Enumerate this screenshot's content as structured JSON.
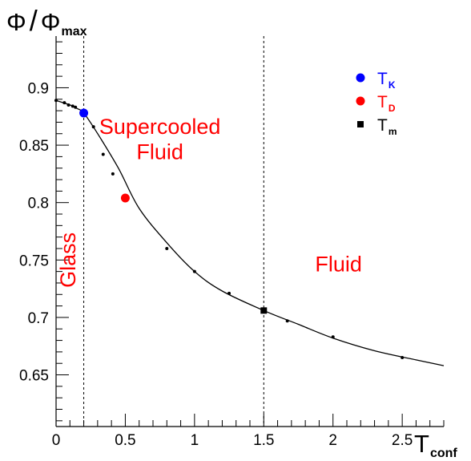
{
  "chart_data": {
    "type": "line",
    "xlabel": "T",
    "xlabel_sub": "conf",
    "ylabel_num": "Φ",
    "ylabel_slash": "/",
    "ylabel_den": "Φ",
    "ylabel_den_sub": "max",
    "xlim": [
      0,
      2.8
    ],
    "ylim": [
      0.605,
      0.945
    ],
    "x_ticks": [
      0,
      0.5,
      1,
      1.5,
      2,
      2.5
    ],
    "x_tick_labels": [
      "0",
      "0.5",
      "1",
      "1.5",
      "2",
      "2.5"
    ],
    "y_ticks": [
      0.65,
      0.7,
      0.75,
      0.8,
      0.85,
      0.9
    ],
    "y_tick_labels": [
      "0.65",
      "0.7",
      "0.75",
      "0.8",
      "0.85",
      "0.9"
    ],
    "grid": false,
    "vertical_lines": [
      0.2,
      1.5
    ],
    "curve": {
      "x": [
        0.0,
        0.1,
        0.15,
        0.2,
        0.3,
        0.45,
        0.6,
        0.8,
        1.0,
        1.2,
        1.5,
        1.75,
        2.0,
        2.3,
        2.6,
        2.8
      ],
      "y": [
        0.889,
        0.885,
        0.882,
        0.878,
        0.86,
        0.83,
        0.795,
        0.765,
        0.74,
        0.723,
        0.706,
        0.694,
        0.682,
        0.671,
        0.663,
        0.658
      ]
    },
    "points": {
      "x": [
        0.0,
        0.06,
        0.09,
        0.12,
        0.14,
        0.27,
        0.34,
        0.41,
        0.8,
        1.0,
        1.25,
        1.67,
        2.0,
        2.5
      ],
      "y": [
        0.889,
        0.887,
        0.885,
        0.884,
        0.883,
        0.866,
        0.842,
        0.825,
        0.76,
        0.74,
        0.721,
        0.697,
        0.683,
        0.665
      ]
    },
    "markers": [
      {
        "name": "T",
        "sub": "K",
        "x": 0.2,
        "y": 0.878,
        "color": "#0000ff",
        "shape": "circle"
      },
      {
        "name": "T",
        "sub": "D",
        "x": 0.5,
        "y": 0.804,
        "color": "#ff0000",
        "shape": "circle"
      },
      {
        "name": "T",
        "sub": "m",
        "x": 1.5,
        "y": 0.706,
        "color": "#000000",
        "shape": "square"
      }
    ],
    "legend_placement": "top-right",
    "annotations": [
      {
        "name": "glass",
        "text": "Glass",
        "x": 0.14,
        "y": 0.75,
        "rotate": -90
      },
      {
        "name": "supercooled",
        "text": "Supercooled",
        "x": 0.75,
        "y": 0.86
      },
      {
        "name": "supercooled-fluid",
        "text": "Fluid",
        "x": 0.75,
        "y": 0.838
      },
      {
        "name": "fluid",
        "text": "Fluid",
        "x": 2.04,
        "y": 0.74
      }
    ]
  }
}
